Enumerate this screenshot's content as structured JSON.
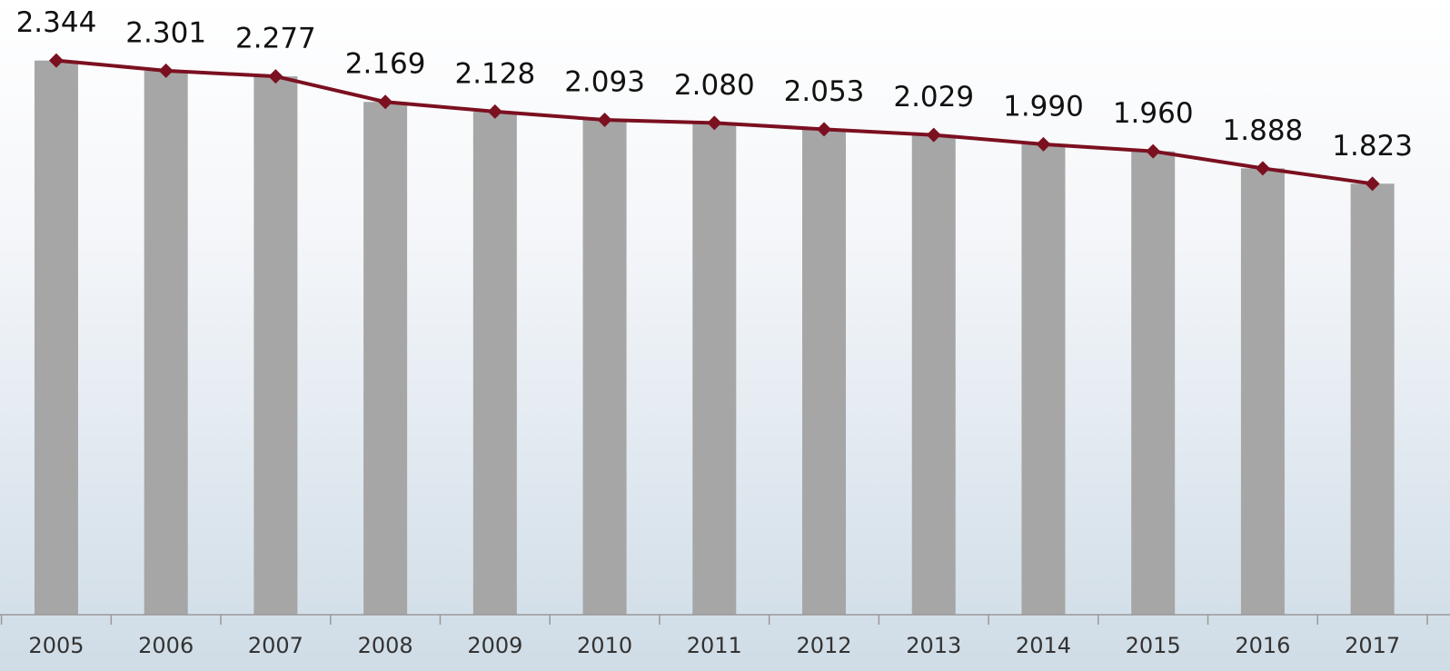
{
  "chart_data": {
    "type": "bar",
    "categories": [
      "2005",
      "2006",
      "2007",
      "2008",
      "2009",
      "2010",
      "2011",
      "2012",
      "2013",
      "2014",
      "2015",
      "2016",
      "2017"
    ],
    "values": [
      2.344,
      2.301,
      2.277,
      2.169,
      2.128,
      2.093,
      2.08,
      2.053,
      2.029,
      1.99,
      1.96,
      1.888,
      1.823
    ],
    "value_labels": [
      "2.344",
      "2.301",
      "2.277",
      "2.169",
      "2.128",
      "2.093",
      "2.080",
      "2.053",
      "2.029",
      "1.990",
      "1.960",
      "1.888",
      "1.823"
    ],
    "color": "#a6a6a6",
    "line_color": "#7b1020",
    "ylim": [
      0,
      2.6
    ]
  }
}
